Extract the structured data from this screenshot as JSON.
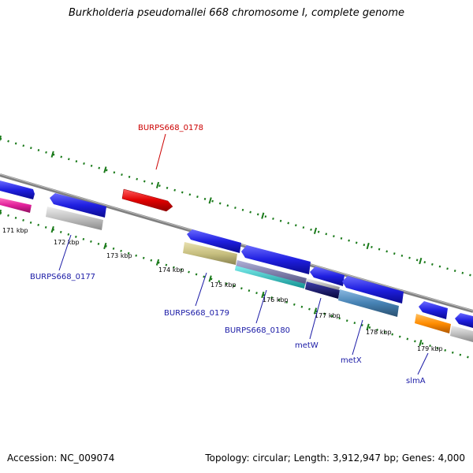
{
  "title": "Burkholderia pseudomallei 668 chromosome I, complete genome",
  "footer": {
    "accession": "Accession: NC_009074",
    "topology": "Topology: circular; Length: 3,912,947 bp; Genes: 4,000"
  },
  "scale_labels": [
    "171 kbp",
    "172 kbp",
    "173 kbp",
    "174 kbp",
    "175 kbp",
    "176 kbp",
    "177 kbp",
    "178 kbp",
    "179 kbp"
  ],
  "gene_labels": [
    {
      "name": "BURPS668_0178",
      "color": "#cc0000"
    },
    {
      "name": "BURPS668_0177",
      "color": "#1a1aa6"
    },
    {
      "name": "BURPS668_0179",
      "color": "#1a1aa6"
    },
    {
      "name": "BURPS668_0180",
      "color": "#1a1aa6"
    },
    {
      "name": "metW",
      "color": "#1a1aa6"
    },
    {
      "name": "metX",
      "color": "#1a1aa6"
    },
    {
      "name": "slmA",
      "color": "#1a1aa6"
    }
  ],
  "colors": {
    "backbone": "#808080",
    "tick": "#1a7a1a",
    "cds": "#1f1fe0",
    "gene_red": "#e00000",
    "gene_magenta": "#e0209a",
    "gene_grey": "#c0c0c0",
    "gene_khaki": "#c8c080",
    "gene_cyan": "#20c0c0",
    "gene_navy": "#10107a",
    "gene_steelblue": "#4682b4",
    "gene_orange": "#ff8c00"
  }
}
